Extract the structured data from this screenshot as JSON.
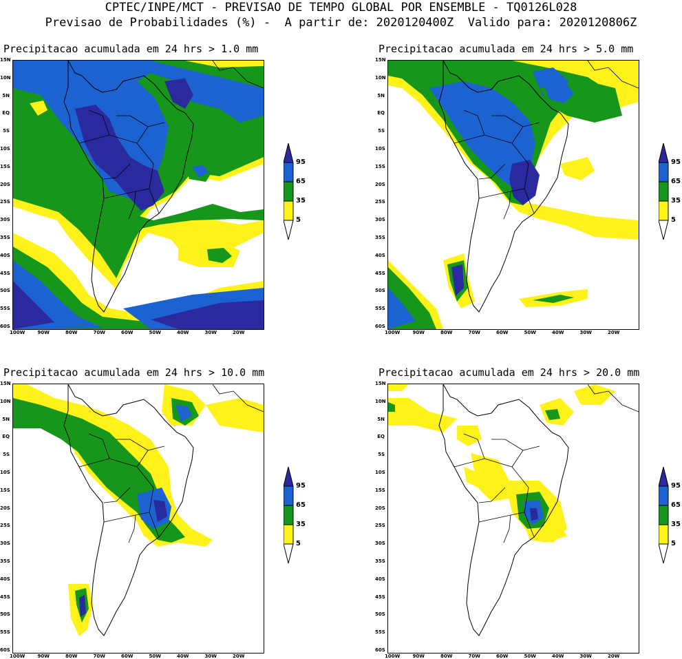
{
  "header": {
    "line1": "CPTEC/INPE/MCT - PREVISAO DE TEMPO GLOBAL POR ENSEMBLE - TQ0126L028",
    "line2": "Previsao de Probabilidades (%) -  A partir de: 2020120400Z  Valido para: 2020120806Z"
  },
  "axis": {
    "lat_labels": [
      "15N",
      "10N",
      "5N",
      "EQ",
      "5S",
      "10S",
      "15S",
      "20S",
      "25S",
      "30S",
      "35S",
      "40S",
      "45S",
      "50S",
      "55S",
      "60S"
    ],
    "lon_labels": [
      "100W",
      "90W",
      "80W",
      "70W",
      "60W",
      "50W",
      "40W",
      "30W",
      "20W"
    ]
  },
  "legend": {
    "labels": [
      "95",
      "65",
      "35",
      "5"
    ],
    "colors": [
      "#2a2a9e",
      "#1c62d0",
      "#16961a",
      "#fff21a"
    ]
  },
  "colors": {
    "p5": "#fff21a",
    "p35": "#16961a",
    "p65": "#1c62d0",
    "p95": "#2a2a9e"
  },
  "panels": [
    {
      "title": "Precipitacao acumulada em 24 hrs > 1.0 mm"
    },
    {
      "title": "Precipitacao acumulada em 24 hrs > 5.0 mm"
    },
    {
      "title": "Precipitacao acumulada em 24 hrs > 10.0 mm"
    },
    {
      "title": "Precipitacao acumulada em 24 hrs > 20.0 mm"
    }
  ]
}
